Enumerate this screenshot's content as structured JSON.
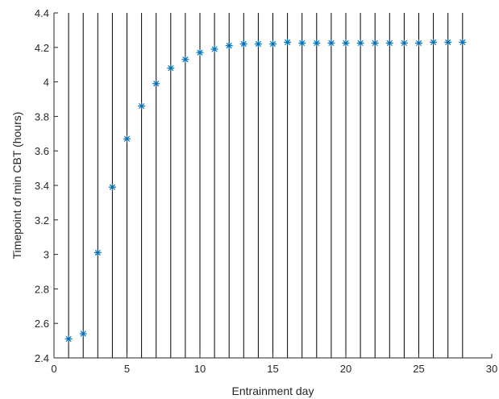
{
  "chart_data": {
    "type": "scatter",
    "title": "",
    "xlabel": "Entrainment day",
    "ylabel": "Timepoint of min CBT (hours)",
    "xlim": [
      0,
      30
    ],
    "ylim": [
      2.4,
      4.4
    ],
    "xticks": [
      0,
      5,
      10,
      15,
      20,
      25,
      30
    ],
    "yticks": [
      2.4,
      2.6,
      2.8,
      3,
      3.2,
      3.4,
      3.6,
      3.8,
      4,
      4.2,
      4.4
    ],
    "xtick_labels": [
      "0",
      "5",
      "10",
      "15",
      "20",
      "25",
      "30"
    ],
    "ytick_labels": [
      "2.4",
      "2.6",
      "2.8",
      "3",
      "3.2",
      "3.4",
      "3.6",
      "3.8",
      "4",
      "4.2",
      "4.4"
    ],
    "vertical_lines_at": [
      1,
      2,
      3,
      4,
      5,
      6,
      7,
      8,
      9,
      10,
      11,
      12,
      13,
      14,
      15,
      16,
      17,
      18,
      19,
      20,
      21,
      22,
      23,
      24,
      25,
      26,
      27,
      28
    ],
    "marker": "asterisk",
    "marker_color": "#0072BD",
    "line_color": "#000000",
    "grid": false,
    "series": [
      {
        "x": [
          1,
          2,
          3,
          4,
          5,
          6,
          7,
          8,
          9,
          10,
          11,
          12,
          13,
          14,
          15,
          16,
          17,
          18,
          19,
          20,
          21,
          22,
          23,
          24,
          25,
          26,
          27,
          28
        ],
        "values": [
          2.51,
          2.54,
          3.01,
          3.39,
          3.67,
          3.86,
          3.99,
          4.08,
          4.13,
          4.17,
          4.19,
          4.21,
          4.22,
          4.22,
          4.22,
          4.23,
          4.225,
          4.225,
          4.225,
          4.225,
          4.225,
          4.225,
          4.225,
          4.225,
          4.225,
          4.23,
          4.23,
          4.23
        ]
      }
    ]
  }
}
